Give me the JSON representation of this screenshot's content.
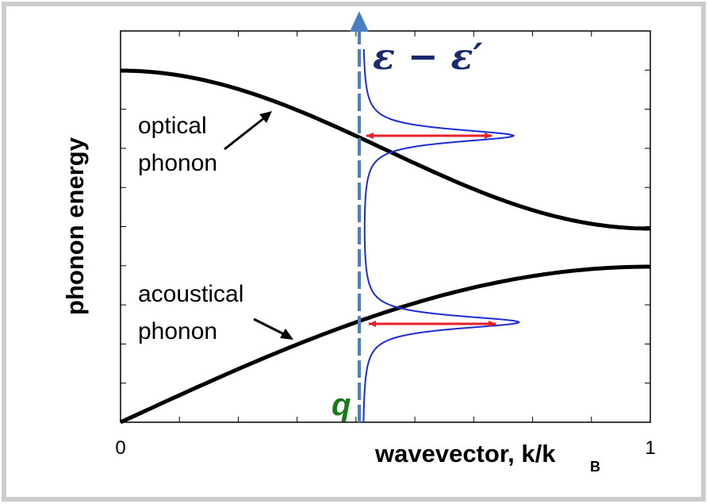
{
  "chart_data": {
    "type": "line",
    "xlabel": "wavevector, k/k",
    "xlabel_subscript": "B",
    "ylabel": "phonon energy",
    "x_ticks": [
      "0",
      "1"
    ],
    "xlim": [
      0,
      1
    ],
    "series": [
      {
        "id": "optical",
        "label_lines": [
          "optical",
          "phonon"
        ],
        "color": "#000000",
        "x": [
          0,
          0.1,
          0.2,
          0.3,
          0.4,
          0.5,
          0.6,
          0.7,
          0.8,
          0.9,
          1.0
        ]
      },
      {
        "id": "acoustical",
        "label_lines": [
          "acoustical",
          "phonon"
        ],
        "color": "#000000",
        "x": [
          0,
          0.1,
          0.2,
          0.3,
          0.4,
          0.5,
          0.6,
          0.7,
          0.8,
          0.9,
          1.0
        ]
      }
    ],
    "q_marker": {
      "label": "q",
      "x": 0.45,
      "color": "#1a7a1a",
      "line_color": "#4a7fc1"
    },
    "axis_label_top": "ε − ε′",
    "spectral_color": "#1f2bd6",
    "arrow_color": "#e8202a",
    "frame_color": "#cccccc"
  }
}
